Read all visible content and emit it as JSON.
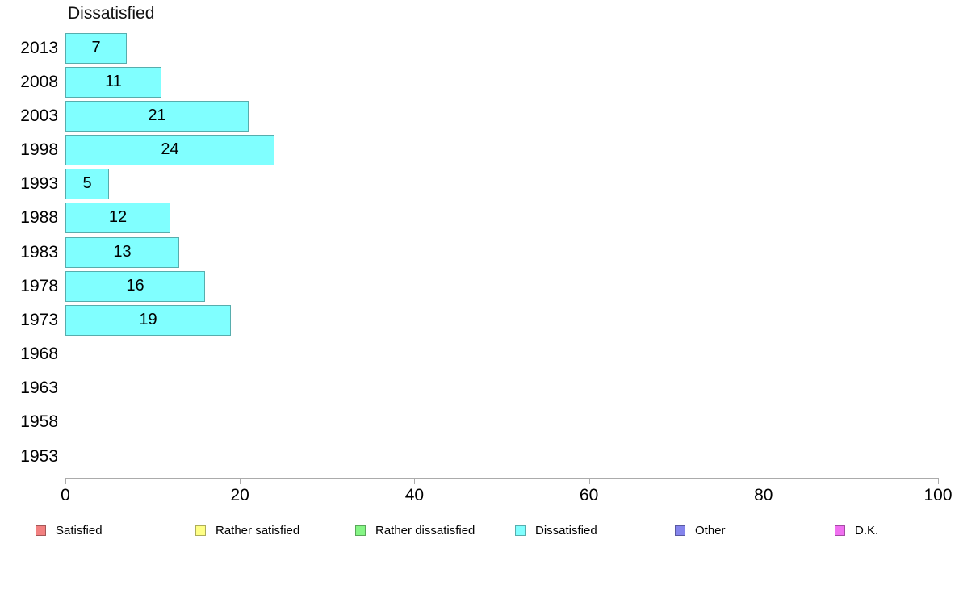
{
  "chart_data": {
    "type": "bar",
    "orientation": "horizontal",
    "title": "Dissatisfied",
    "series_name": "Dissatisfied",
    "categories": [
      "2013",
      "2008",
      "2003",
      "1998",
      "1993",
      "1988",
      "1983",
      "1978",
      "1973",
      "1968",
      "1963",
      "1958",
      "1953"
    ],
    "values": [
      7,
      11,
      21,
      24,
      5,
      12,
      13,
      16,
      19,
      null,
      null,
      null,
      null
    ],
    "xlabel": "",
    "ylabel": "",
    "xlim": [
      0,
      100
    ],
    "x_ticks": [
      0,
      20,
      40,
      60,
      80,
      100
    ],
    "grid": false,
    "value_labels_inside_bars": true,
    "bar_fill_color": "#80ffff",
    "bar_border_color": "rgba(0,0,0,0.32)",
    "axis_color": "#ababab",
    "legend_position": "bottom",
    "legend": [
      {
        "label": "Satisfied",
        "color": "#f28080"
      },
      {
        "label": "Rather satisfied",
        "color": "#ffff85"
      },
      {
        "label": "Rather dissatisfied",
        "color": "#85f585"
      },
      {
        "label": "Dissatisfied",
        "color": "#80ffff"
      },
      {
        "label": "Other",
        "color": "#8484ec"
      },
      {
        "label": "D.K.",
        "color": "#f070f0"
      }
    ]
  }
}
